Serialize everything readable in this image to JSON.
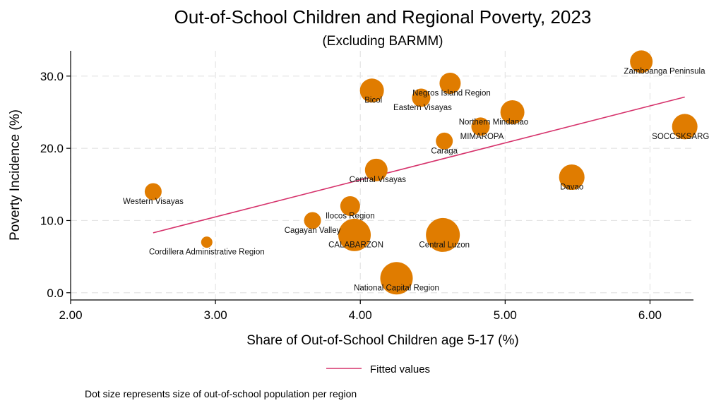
{
  "chart_data": {
    "type": "scatter",
    "title": "Out-of-School Children and Regional Poverty, 2023",
    "subtitle": "(Excluding BARMM)",
    "xlabel": "Share of Out-of-School Children age 5-17 (%)",
    "ylabel": "Poverty Incidence (%)",
    "xlim": [
      2.0,
      6.3
    ],
    "ylim": [
      -1.0,
      33.5
    ],
    "x_ticks": [
      2.0,
      3.0,
      4.0,
      5.0,
      6.0
    ],
    "x_tick_labels": [
      "2.00",
      "3.00",
      "4.00",
      "5.00",
      "6.00"
    ],
    "y_ticks": [
      0,
      10,
      20,
      30
    ],
    "y_tick_labels": [
      "0.0",
      "10.0",
      "20.0",
      "30.0"
    ],
    "grid": true,
    "marker_color": "#E07C00",
    "fit_color": "#D6336C",
    "points": [
      {
        "label": "Zamboanga Peninsula",
        "x": 5.94,
        "y": 32.0,
        "size": 16,
        "lx": 6.1,
        "ly": 30.3,
        "anchor": "middle"
      },
      {
        "label": "Bicol",
        "x": 4.08,
        "y": 28.0,
        "size": 17,
        "lx": 4.09,
        "ly": 26.3,
        "anchor": "middle"
      },
      {
        "label": "Negros Island Region",
        "x": 4.62,
        "y": 29.0,
        "size": 15,
        "lx": 4.63,
        "ly": 27.3,
        "anchor": "middle"
      },
      {
        "label": "Eastern Visayas",
        "x": 4.42,
        "y": 27.0,
        "size": 13,
        "lx": 4.43,
        "ly": 25.3,
        "anchor": "middle"
      },
      {
        "label": "Northern Mindanao",
        "x": 5.05,
        "y": 25.0,
        "size": 17,
        "lx": 4.92,
        "ly": 23.3,
        "anchor": "middle"
      },
      {
        "label": "MIMAROPA",
        "x": 4.83,
        "y": 23.0,
        "size": 13,
        "lx": 4.84,
        "ly": 21.3,
        "anchor": "middle"
      },
      {
        "label": "Caraga",
        "x": 4.58,
        "y": 21.0,
        "size": 12,
        "lx": 4.58,
        "ly": 19.3,
        "anchor": "middle"
      },
      {
        "label": "SOCCSKSARGEN",
        "x": 6.24,
        "y": 23.0,
        "size": 18,
        "lx": 6.25,
        "ly": 21.3,
        "anchor": "middle"
      },
      {
        "label": "Central Visayas",
        "x": 4.11,
        "y": 17.0,
        "size": 16,
        "lx": 4.12,
        "ly": 15.3,
        "anchor": "middle"
      },
      {
        "label": "Davao",
        "x": 5.46,
        "y": 16.0,
        "size": 18,
        "lx": 5.46,
        "ly": 14.3,
        "anchor": "middle"
      },
      {
        "label": "Western Visayas",
        "x": 2.57,
        "y": 14.0,
        "size": 12,
        "lx": 2.57,
        "ly": 12.3,
        "anchor": "middle"
      },
      {
        "label": "Ilocos Region",
        "x": 3.93,
        "y": 12.0,
        "size": 14,
        "lx": 3.93,
        "ly": 10.3,
        "anchor": "middle"
      },
      {
        "label": "Cagayan Valley",
        "x": 3.67,
        "y": 10.0,
        "size": 12,
        "lx": 3.67,
        "ly": 8.3,
        "anchor": "middle"
      },
      {
        "label": "CALABARZON",
        "x": 3.96,
        "y": 8.0,
        "size": 23,
        "lx": 3.97,
        "ly": 6.3,
        "anchor": "middle"
      },
      {
        "label": "Central Luzon",
        "x": 4.57,
        "y": 8.0,
        "size": 24,
        "lx": 4.58,
        "ly": 6.3,
        "anchor": "middle"
      },
      {
        "label": "Cordillera Administrative Region",
        "x": 2.94,
        "y": 7.0,
        "size": 8,
        "lx": 2.94,
        "ly": 5.3,
        "anchor": "middle"
      },
      {
        "label": "National Capital Region",
        "x": 4.25,
        "y": 2.0,
        "size": 23,
        "lx": 4.25,
        "ly": 0.3,
        "anchor": "middle"
      }
    ],
    "fit_line": {
      "x": [
        2.57,
        6.24
      ],
      "y": [
        8.3,
        27.1
      ]
    },
    "legend": {
      "label": "Fitted values",
      "position": "bottom"
    },
    "note": "Dot size represents size of out-of-school population per region"
  }
}
